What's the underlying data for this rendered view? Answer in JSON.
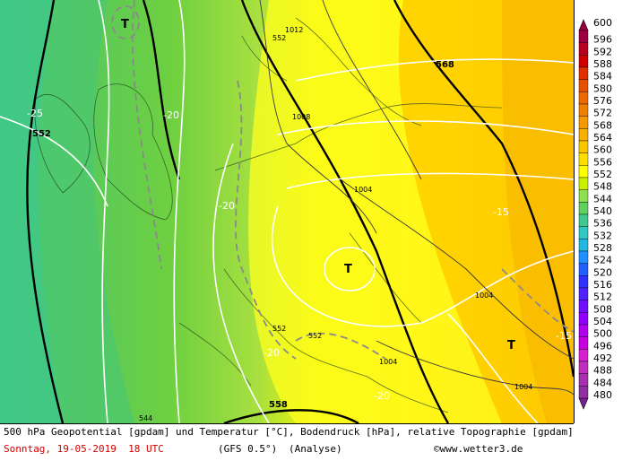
{
  "map": {
    "height_labels": [
      "552",
      "552",
      "568",
      "552",
      "552",
      "544",
      "552",
      "558"
    ],
    "temp_labels": [
      "-25",
      "-20",
      "-20",
      "-20",
      "-20",
      "-15",
      "-15"
    ],
    "pressure_labels": [
      "1012",
      "1008",
      "1004",
      "1004",
      "1004",
      "1004"
    ],
    "lows": [
      "T",
      "T",
      "T"
    ]
  },
  "legend": {
    "values": [
      "600",
      "596",
      "592",
      "588",
      "584",
      "580",
      "576",
      "572",
      "568",
      "564",
      "560",
      "556",
      "552",
      "548",
      "544",
      "540",
      "536",
      "532",
      "528",
      "524",
      "520",
      "516",
      "512",
      "508",
      "504",
      "500",
      "496",
      "492",
      "488",
      "484",
      "480"
    ],
    "colors": [
      "#9c0040",
      "#b80020",
      "#d00000",
      "#e03000",
      "#e85000",
      "#ee6a00",
      "#f28000",
      "#f59a00",
      "#f8b000",
      "#fbc800",
      "#fde000",
      "#ffff00",
      "#c8f000",
      "#8ee050",
      "#60d060",
      "#40c890",
      "#30c8c0",
      "#20b8e0",
      "#1e90ff",
      "#2060ff",
      "#3030ff",
      "#5020ff",
      "#7010ff",
      "#9000ff",
      "#b000f0",
      "#c800e0",
      "#d820d0",
      "#c030c0",
      "#a830b0",
      "#9030a0",
      "#7a2090"
    ]
  },
  "footer": {
    "line1": "500 hPa Geopotential [gpdam] und Temperatur [°C], Bodendruck [hPa], relative Topographie [gpdam]",
    "date": "Sonntag, 19-05-2019  18 UTC",
    "model": "(GFS 0.5°)",
    "analysis": "(Analyse)",
    "credit": "©www.wetter3.de"
  }
}
